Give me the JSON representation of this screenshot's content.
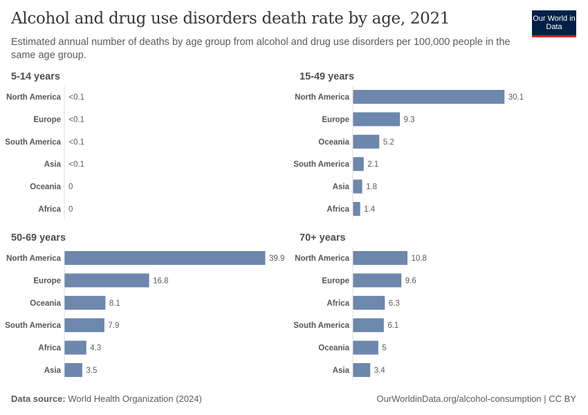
{
  "header": {
    "title": "Alcohol and drug use disorders death rate by age, 2021",
    "subtitle": "Estimated annual number of deaths by age group from alcohol and drug use disorders per 100,000 people in the same age group.",
    "logo": "Our World in Data"
  },
  "footer": {
    "source_label": "Data source:",
    "source": "World Health Organization (2024)",
    "url": "OurWorldinData.org/alcohol-consumption | CC BY"
  },
  "chart_data": [
    {
      "type": "bar",
      "orientation": "horizontal",
      "title": "5-14 years",
      "categories": [
        "North America",
        "Europe",
        "South America",
        "Asia",
        "Oceania",
        "Africa"
      ],
      "values": [
        0.05,
        0.05,
        0.05,
        0.05,
        0,
        0
      ],
      "labels": [
        "<0.1",
        "<0.1",
        "<0.1",
        "<0.1",
        "0",
        "0"
      ]
    },
    {
      "type": "bar",
      "orientation": "horizontal",
      "title": "15-49 years",
      "categories": [
        "North America",
        "Europe",
        "Oceania",
        "South America",
        "Asia",
        "Africa"
      ],
      "values": [
        30.1,
        9.3,
        5.2,
        2.1,
        1.8,
        1.4
      ],
      "labels": [
        "30.1",
        "9.3",
        "5.2",
        "2.1",
        "1.8",
        "1.4"
      ]
    },
    {
      "type": "bar",
      "orientation": "horizontal",
      "title": "50-69 years",
      "categories": [
        "North America",
        "Europe",
        "Oceania",
        "South America",
        "Africa",
        "Asia"
      ],
      "values": [
        39.9,
        16.8,
        8.1,
        7.9,
        4.3,
        3.5
      ],
      "labels": [
        "39.9",
        "16.8",
        "8.1",
        "7.9",
        "4.3",
        "3.5"
      ]
    },
    {
      "type": "bar",
      "orientation": "horizontal",
      "title": "70+ years",
      "categories": [
        "North America",
        "Europe",
        "Africa",
        "South America",
        "Oceania",
        "Asia"
      ],
      "values": [
        10.8,
        9.6,
        6.3,
        6.1,
        5,
        3.4
      ],
      "labels": [
        "10.8",
        "9.6",
        "6.3",
        "6.1",
        "5",
        "3.4"
      ]
    }
  ],
  "colors": {
    "bar": "#6d87ad",
    "axis": "#dddddd"
  }
}
